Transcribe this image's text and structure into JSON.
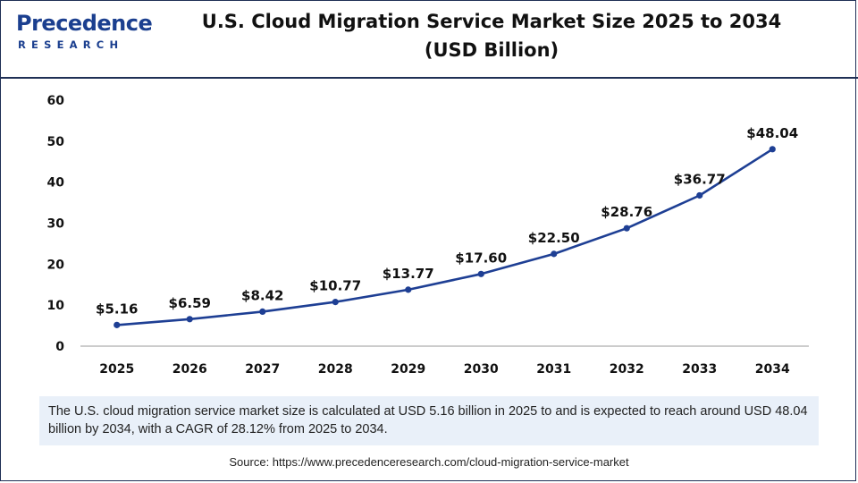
{
  "logo": {
    "wordmark": "Precedence",
    "subtitle": "RESEARCH"
  },
  "note": "The U.S. cloud migration service market size is calculated at USD 5.16 billion in 2025 to and is expected to reach around USD 48.04 billion by 2034, with a CAGR of 28.12% from 2025 to 2034.",
  "source": "Source: https://www.precedenceresearch.com/cloud-migration-service-market",
  "colors": {
    "line": "#1e3f94",
    "point": "#1e3f94",
    "axis": "#999999",
    "text": "#111111",
    "brand": "#1b3f8f"
  },
  "chart_data": {
    "type": "line",
    "title_lines": [
      "U.S. Cloud Migration Service Market Size 2025 to 2034",
      "(USD Billion)"
    ],
    "x": [
      "2025",
      "2026",
      "2027",
      "2028",
      "2029",
      "2030",
      "2031",
      "2032",
      "2033",
      "2034"
    ],
    "series": [
      {
        "name": "U.S. Cloud Migration Service Market Size",
        "values": [
          5.16,
          6.59,
          8.42,
          10.77,
          13.77,
          17.6,
          22.5,
          28.76,
          36.77,
          48.04
        ],
        "labels": [
          "$5.16",
          "$6.59",
          "$8.42",
          "$10.77",
          "$13.77",
          "$17.60",
          "$22.50",
          "$28.76",
          "$36.77",
          "$48.04"
        ]
      }
    ],
    "yticks": [
      "0",
      "10",
      "20",
      "30",
      "40",
      "50",
      "60"
    ],
    "ylim": [
      0,
      60
    ],
    "xlabel": "",
    "ylabel": "",
    "grid": false,
    "legend": "none"
  }
}
